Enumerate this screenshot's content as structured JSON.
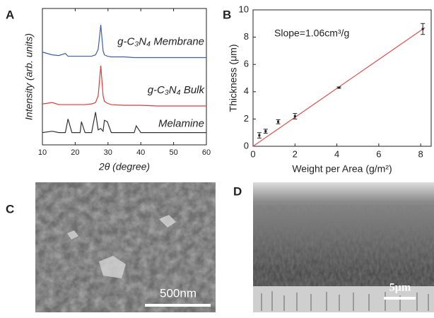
{
  "chart_data": [
    {
      "type": "line",
      "panel": "A",
      "xlabel": "2θ (degree)",
      "ylabel": "Intensity (arb. units)",
      "x": [
        10,
        13,
        15,
        17,
        17.8,
        19,
        21.5,
        21.9,
        23,
        25,
        26.2,
        27,
        27.8,
        28.5,
        28.9,
        29.8,
        31,
        35,
        38,
        38.6,
        40,
        45,
        50,
        55,
        60
      ],
      "series": [
        {
          "name": "g-C₃N₄ Membrane",
          "color": "#3b5fb0",
          "values": [
            6.8,
            6.6,
            6.55,
            6.7,
            6.5,
            6.5,
            6.5,
            6.5,
            6.5,
            6.5,
            6.6,
            7.0,
            8.8,
            6.9,
            6.6,
            6.5,
            6.45,
            6.45,
            6.4,
            6.4,
            6.4,
            6.4,
            6.4,
            6.4,
            6.4
          ]
        },
        {
          "name": "g-C₃N₄ Bulk",
          "color": "#e03a3a",
          "values": [
            3.0,
            3.1,
            2.95,
            2.95,
            2.95,
            2.95,
            2.95,
            2.95,
            2.95,
            3.0,
            3.1,
            3.6,
            5.8,
            3.6,
            3.2,
            3.05,
            2.95,
            2.9,
            2.9,
            2.9,
            2.9,
            2.85,
            2.85,
            2.85,
            2.85
          ]
        },
        {
          "name": "Melamine",
          "color": "#333333",
          "values": [
            0.9,
            1.0,
            0.9,
            0.9,
            1.9,
            0.9,
            0.9,
            1.7,
            0.9,
            0.9,
            2.4,
            1.1,
            1.2,
            1.0,
            1.8,
            1.7,
            0.9,
            0.9,
            0.9,
            1.4,
            0.9,
            0.9,
            0.9,
            0.9,
            0.9
          ]
        }
      ],
      "xlim": [
        10,
        60
      ],
      "xticks": [
        10,
        20,
        30,
        40,
        50,
        60
      ],
      "ylim": [
        0,
        10
      ]
    },
    {
      "type": "scatter",
      "panel": "B",
      "xlabel": "Weight per Area (g/m²)",
      "ylabel": "Thickness (μm)",
      "annotation": "Slope=1.06cm³/g",
      "x": [
        0.3,
        0.6,
        1.2,
        2.0,
        4.1,
        8.1
      ],
      "values": [
        0.8,
        1.1,
        1.8,
        2.2,
        4.3,
        8.6
      ],
      "errors": [
        0.2,
        0.15,
        0.15,
        0.2,
        0.05,
        0.4
      ],
      "color": "#222222",
      "fit": {
        "color": "#e05050",
        "x": [
          0,
          8.2
        ],
        "values": [
          0,
          8.7
        ]
      },
      "xlim": [
        0,
        8.5
      ],
      "xticks": [
        0,
        2,
        4,
        6,
        8
      ],
      "ylim": [
        0,
        10
      ],
      "yticks": [
        0,
        2,
        4,
        6,
        8,
        10
      ]
    }
  ],
  "images": [
    {
      "panel": "C",
      "scale_bar": "500nm"
    },
    {
      "panel": "D",
      "scale_bar": "5μm"
    }
  ]
}
